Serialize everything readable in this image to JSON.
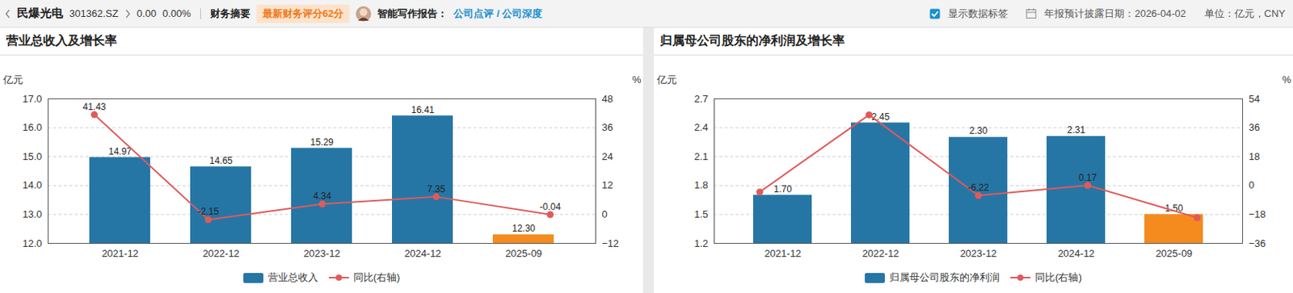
{
  "header": {
    "name": "民爆光电",
    "code": "301362.SZ",
    "price": "0.00",
    "change": "0.00%",
    "tab": "财务摘要",
    "score": "最新财务评分62分",
    "report_label": "智能写作报告：",
    "report_links": [
      "公司点评",
      "公司深度"
    ],
    "report_separator": "/",
    "toggle": "显示数据标签",
    "disclosure": "年报预计披露日期：2026-04-02",
    "unit": "单位：亿元，CNY"
  },
  "chart_data": [
    {
      "type": "bar",
      "title": "营业总收入及增长率",
      "categories": [
        "2021-12",
        "2022-12",
        "2023-12",
        "2024-12",
        "2025-09"
      ],
      "ylabel": "亿元",
      "y2label": "%",
      "ylim": [
        12,
        17
      ],
      "yticks": [
        12,
        13,
        14,
        15,
        16,
        17
      ],
      "y2lim": [
        -12,
        48
      ],
      "y2ticks": [
        -12,
        0,
        12,
        24,
        36,
        48
      ],
      "grid": true,
      "data_labels": true,
      "legend": "bottom",
      "series": [
        {
          "name": "营业总收入",
          "type": "bar",
          "color": "#2676a5",
          "colors": [
            "#2676a5",
            "#2676a5",
            "#2676a5",
            "#2676a5",
            "#f58b1f"
          ],
          "values": [
            14.97,
            14.65,
            15.29,
            16.41,
            12.3
          ],
          "value_labels": [
            "14.97",
            "14.65",
            "15.29",
            "16.41",
            "12.30"
          ]
        },
        {
          "name": "同比(右轴)",
          "type": "line",
          "axis": "y2",
          "color": "#e05a5a",
          "marker": "circle",
          "values": [
            41.43,
            -2.15,
            4.34,
            7.35,
            -0.04
          ]
        }
      ]
    },
    {
      "type": "bar",
      "title": "归属母公司股东的净利润及增长率",
      "categories": [
        "2021-12",
        "2022-12",
        "2023-12",
        "2024-12",
        "2025-09"
      ],
      "ylabel": "亿元",
      "y2label": "%",
      "ylim": [
        1.2,
        2.7
      ],
      "yticks": [
        1.2,
        1.5,
        1.8,
        2.1,
        2.4,
        2.7
      ],
      "y2lim": [
        -36,
        54
      ],
      "y2ticks": [
        -36,
        -18,
        0,
        18,
        36,
        54
      ],
      "grid": true,
      "data_labels": true,
      "legend": "bottom",
      "series": [
        {
          "name": "归属母公司股东的净利润",
          "type": "bar",
          "color": "#2676a5",
          "colors": [
            "#2676a5",
            "#2676a5",
            "#2676a5",
            "#2676a5",
            "#f58b1f"
          ],
          "values": [
            1.7,
            2.45,
            2.3,
            2.31,
            1.5
          ],
          "value_labels": [
            "1.70",
            "2.45",
            "2.30",
            "2.31",
            "1.50"
          ]
        },
        {
          "name": "同比(右轴)",
          "type": "line",
          "axis": "y2",
          "color": "#e05a5a",
          "marker": "circle",
          "values": [
            -4,
            44,
            -6.22,
            0.17,
            -20
          ],
          "value_labels": [
            null,
            null,
            "-6.22",
            "0.17",
            null
          ]
        }
      ]
    }
  ]
}
